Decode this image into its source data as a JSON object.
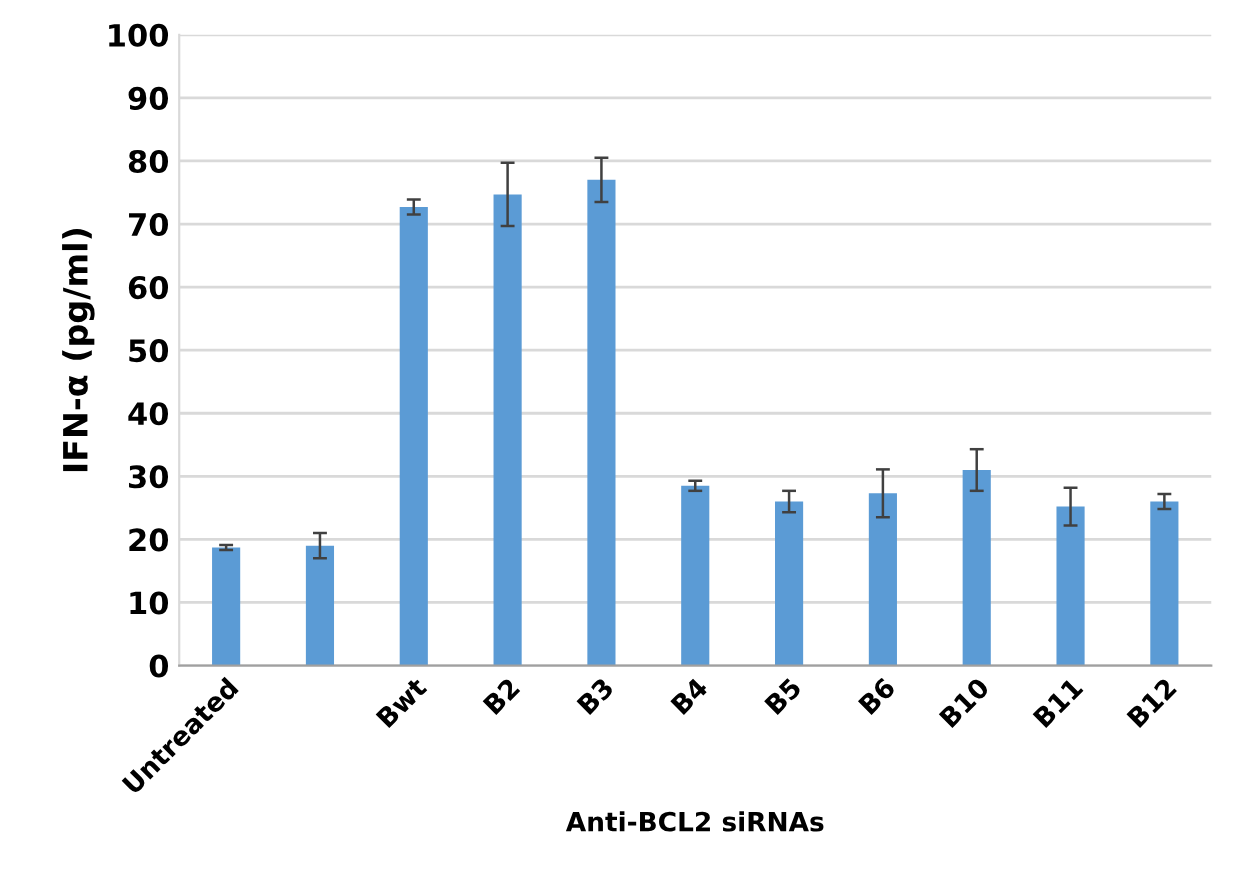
{
  "chart_data": {
    "type": "bar",
    "xlabel": "Anti-BCL2 siRNAs",
    "ylabel": "IFN-α (pg/ml)",
    "categories": [
      "Untreated",
      null,
      "Bwt",
      "B2",
      "B3",
      "B4",
      "B5",
      "B6",
      "B10",
      "B11",
      "B12"
    ],
    "values": [
      18.7,
      19,
      72.7,
      74.7,
      77,
      28.5,
      26,
      27.3,
      31,
      25.2,
      26
    ],
    "errors": [
      0.4,
      2,
      1.2,
      5,
      3.5,
      0.8,
      1.7,
      3.8,
      3.3,
      3,
      1.2
    ],
    "color": "#5b9bd5",
    "ylim": [
      0,
      100
    ],
    "yticks": [
      0,
      10,
      20,
      30,
      40,
      50,
      60,
      70,
      80,
      90,
      100
    ],
    "grid": "y",
    "legend": false
  }
}
